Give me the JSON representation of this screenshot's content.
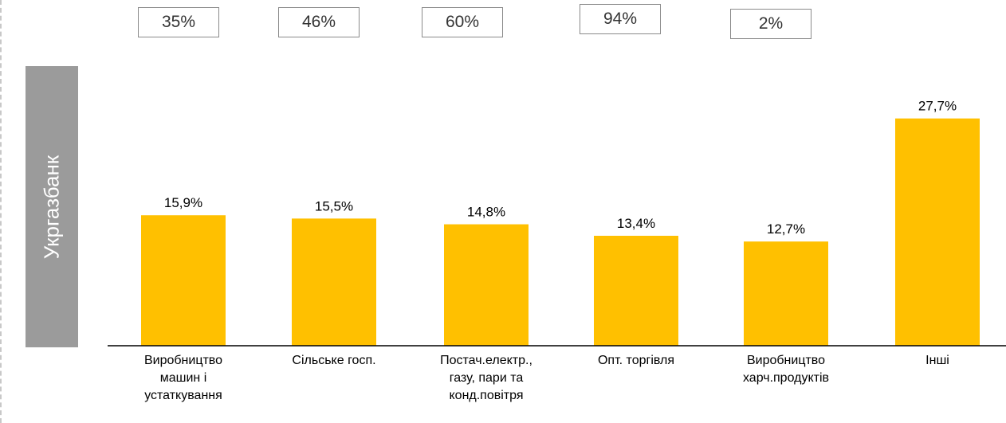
{
  "side_label": "Укргазбанк",
  "share_boxes": [
    "35%",
    "46%",
    "60%",
    "94%",
    "2%"
  ],
  "chart_data": {
    "type": "bar",
    "categories": [
      "Виробництво машин і устаткування",
      "Сільське госп.",
      "Постач.електр., газу, пари та конд.повітря",
      "Опт. торгівля",
      "Виробництво харч.продуктів",
      "Інші"
    ],
    "values": [
      15.9,
      15.5,
      14.8,
      13.4,
      12.7,
      27.7
    ],
    "data_labels": [
      "15,9%",
      "15,5%",
      "14,8%",
      "13,4%",
      "12,7%",
      "27,7%"
    ],
    "title": "",
    "xlabel": "",
    "ylabel": "",
    "ylim": [
      0,
      30
    ],
    "bar_color": "#ffc000",
    "grid": false,
    "legend": "none"
  }
}
